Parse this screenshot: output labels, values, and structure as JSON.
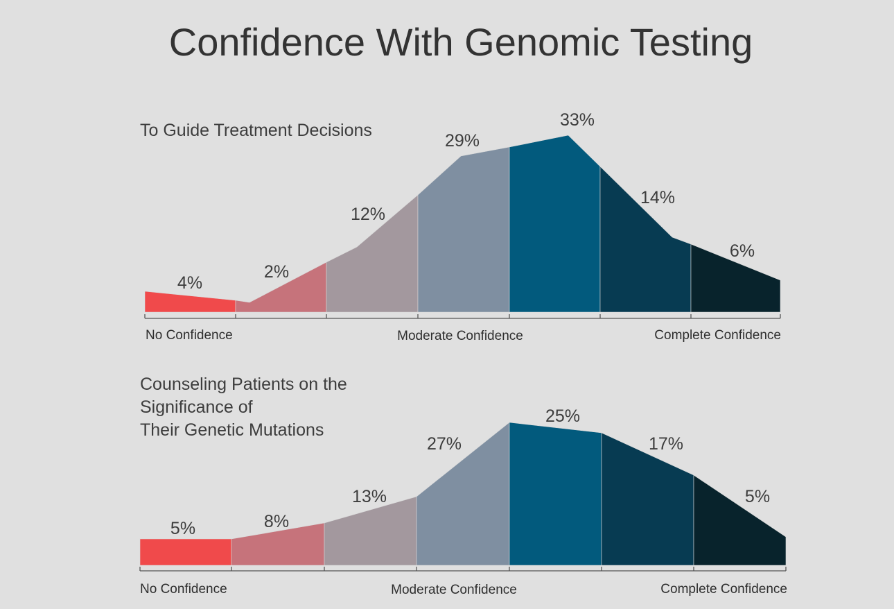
{
  "title": "Confidence With Genomic Testing",
  "chart_data": [
    {
      "type": "area",
      "title": "To Guide Treatment Decisions",
      "categories": [
        "1",
        "2",
        "3",
        "4",
        "5",
        "6",
        "7"
      ],
      "values": [
        4,
        2,
        12,
        29,
        33,
        14,
        6
      ],
      "data_labels": [
        "4%",
        "2%",
        "12%",
        "29%",
        "33%",
        "14%",
        "6%"
      ],
      "axis_labels": [
        "No Confidence",
        "Moderate Confidence",
        "Complete Confidence"
      ],
      "colors": [
        "#f04a4b",
        "#c6737b",
        "#a3989e",
        "#7f8fa1",
        "#025a7d",
        "#073b52",
        "#08232c"
      ]
    },
    {
      "type": "area",
      "title": "Counseling Patients on the\nSignificance of\nTheir Genetic Mutations",
      "categories": [
        "1",
        "2",
        "3",
        "4",
        "5",
        "6",
        "7"
      ],
      "values": [
        5,
        8,
        13,
        27,
        25,
        17,
        5
      ],
      "data_labels": [
        "5%",
        "8%",
        "13%",
        "27%",
        "25%",
        "17%",
        "5%"
      ],
      "axis_labels": [
        "No Confidence",
        "Moderate Confidence",
        "Complete Confidence"
      ],
      "colors": [
        "#f04a4b",
        "#c6737b",
        "#a3989e",
        "#7f8fa1",
        "#025a7d",
        "#073b52",
        "#08232c"
      ]
    }
  ]
}
